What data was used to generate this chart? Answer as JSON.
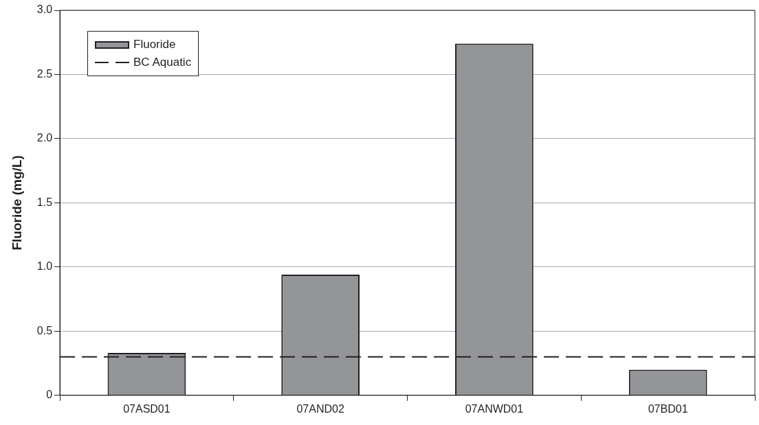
{
  "chart_data": {
    "type": "bar",
    "ylabel": "Fluoride (mg/L)",
    "categories": [
      "07ASD01",
      "07AND02",
      "07ANWD01",
      "07BD01"
    ],
    "series": [
      {
        "name": "Fluoride",
        "color": "#939598",
        "values": [
          0.33,
          0.94,
          2.74,
          0.2
        ]
      }
    ],
    "ylim": [
      0,
      3
    ],
    "yticks": [
      0,
      0.5,
      {
        "value": 1,
        "label": "1.0"
      },
      1.5,
      {
        "value": 2,
        "label": "2.0"
      },
      2.5,
      {
        "value": 3,
        "label": "3.0"
      }
    ],
    "ref_lines": [
      {
        "axis": "y",
        "value": 0.3,
        "label": "BC Aquatic",
        "color": "#231f20",
        "line_style": "dashed"
      }
    ],
    "grid": "y",
    "legend": "top left"
  }
}
